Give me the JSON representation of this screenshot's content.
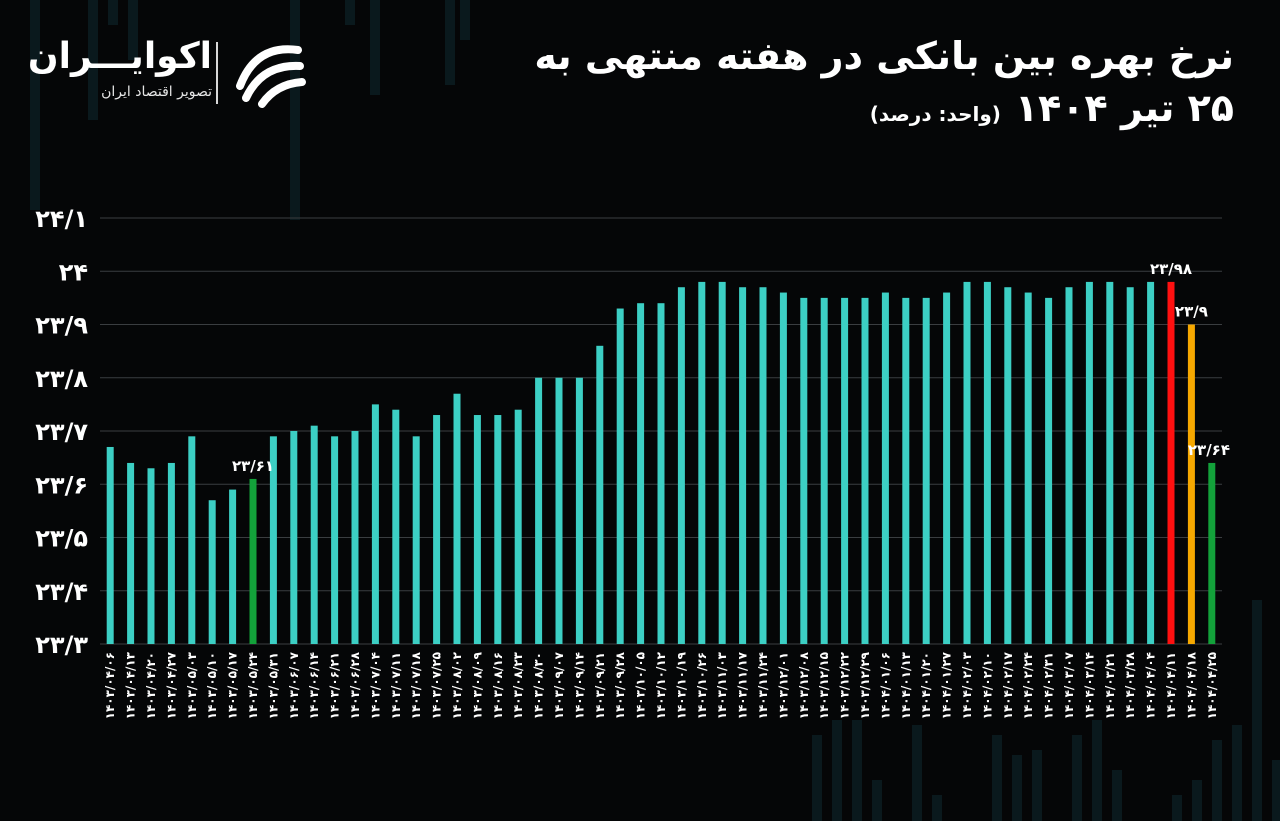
{
  "header": {
    "title_line1": "نرخ بهره بین بانکی در هفته منتهی به",
    "title_line2": "۲۵ تیر ۱۴۰۴",
    "unit": "(واحد: درصد)"
  },
  "brand": {
    "name": "اکوایـــران",
    "tagline": "تصویر اقتصاد ایران",
    "logo_icon": "ecoiran-logo-icon"
  },
  "colors": {
    "background": "#050607",
    "bar_default": "#3ccfc4",
    "bar_green": "#13a13a",
    "bar_red": "#ff1010",
    "bar_orange": "#f6a800",
    "grid": "#3a3d40",
    "text": "#ffffff"
  },
  "chart_data": {
    "type": "bar",
    "ylim": [
      23.3,
      24.1
    ],
    "yticks": [
      23.3,
      23.4,
      23.5,
      23.6,
      23.7,
      23.8,
      23.9,
      24,
      24.1
    ],
    "ytick_labels": [
      "۲۳/۳",
      "۲۳/۴",
      "۲۳/۵",
      "۲۳/۶",
      "۲۳/۷",
      "۲۳/۸",
      "۲۳/۹",
      "۲۴",
      "۲۴/۱"
    ],
    "grid": true,
    "categories": [
      "۱۴۰۳/۰۴/۰۶",
      "۱۴۰۳/۰۴/۱۳",
      "۱۴۰۳/۰۴/۲۰",
      "۱۴۰۳/۰۴/۲۷",
      "۱۴۰۳/۰۵/۰۳",
      "۱۴۰۳/۰۵/۱۰",
      "۱۴۰۳/۰۵/۱۷",
      "۱۴۰۳/۰۵/۲۴",
      "۱۴۰۳/۰۵/۳۱",
      "۱۴۰۳/۰۶/۰۷",
      "۱۴۰۳/۰۶/۱۴",
      "۱۴۰۳/۰۶/۲۱",
      "۱۴۰۳/۰۶/۲۸",
      "۱۴۰۳/۰۷/۰۴",
      "۱۴۰۳/۰۷/۱۱",
      "۱۴۰۳/۰۷/۱۸",
      "۱۴۰۳/۰۷/۲۵",
      "۱۴۰۳/۰۸/۰۲",
      "۱۴۰۳/۰۸/۰۹",
      "۱۴۰۳/۰۸/۱۶",
      "۱۴۰۳/۰۸/۲۳",
      "۱۴۰۳/۰۸/۳۰",
      "۱۴۰۳/۰۹/۰۷",
      "۱۴۰۳/۰۹/۱۴",
      "۱۴۰۳/۰۹/۲۱",
      "۱۴۰۳/۰۹/۲۸",
      "۱۴۰۳/۱۰/۰۵",
      "۱۴۰۳/۱۰/۱۲",
      "۱۴۰۳/۱۰/۱۹",
      "۱۴۰۳/۱۰/۲۶",
      "۱۴۰۳/۱۱/۰۳",
      "۱۴۰۳/۱۱/۱۷",
      "۱۴۰۳/۱۱/۲۴",
      "۱۴۰۳/۱۲/۰۱",
      "۱۴۰۳/۱۲/۰۸",
      "۱۴۰۳/۱۲/۱۵",
      "۱۴۰۳/۱۲/۲۲",
      "۱۴۰۳/۱۲/۲۹",
      "۱۴۰۴/۰۱/۰۶",
      "۱۴۰۴/۰۱/۱۳",
      "۱۴۰۴/۰۱/۲۰",
      "۱۴۰۴/۰۱/۲۷",
      "۱۴۰۴/۰۲/۰۳",
      "۱۴۰۴/۰۲/۱۰",
      "۱۴۰۴/۰۲/۱۷",
      "۱۴۰۴/۰۲/۲۴",
      "۱۴۰۴/۰۲/۳۱",
      "۱۴۰۴/۰۳/۰۷",
      "۱۴۰۴/۰۳/۱۴",
      "۱۴۰۴/۰۳/۲۱",
      "۱۴۰۴/۰۳/۲۸",
      "۱۴۰۴/۰۴/۰۴",
      "۱۴۰۴/۰۴/۱۱",
      "۱۴۰۴/۰۴/۱۸",
      "۱۴۰۴/۰۴/۲۵"
    ],
    "values": [
      23.67,
      23.64,
      23.63,
      23.64,
      23.69,
      23.57,
      23.59,
      23.61,
      23.69,
      23.7,
      23.71,
      23.69,
      23.7,
      23.75,
      23.74,
      23.69,
      23.73,
      23.77,
      23.73,
      23.73,
      23.74,
      23.8,
      23.8,
      23.8,
      23.86,
      23.93,
      23.94,
      23.94,
      23.97,
      23.98,
      23.98,
      23.97,
      23.97,
      23.96,
      23.95,
      23.95,
      23.95,
      23.95,
      23.96,
      23.95,
      23.95,
      23.96,
      23.98,
      23.98,
      23.97,
      23.96,
      23.95,
      23.97,
      23.98,
      23.98,
      23.97,
      23.98,
      23.98,
      23.9,
      23.64
    ],
    "bar_colors": {
      "7": "green",
      "52": "red",
      "53": "orange",
      "54": "green"
    },
    "annotations": [
      {
        "index": 7,
        "text": "۲۳/۶۱"
      },
      {
        "index": 52,
        "text": "۲۳/۹۸"
      },
      {
        "index": 53,
        "text": "۲۳/۹"
      },
      {
        "index": 54,
        "text": "۲۳/۶۴"
      }
    ]
  }
}
